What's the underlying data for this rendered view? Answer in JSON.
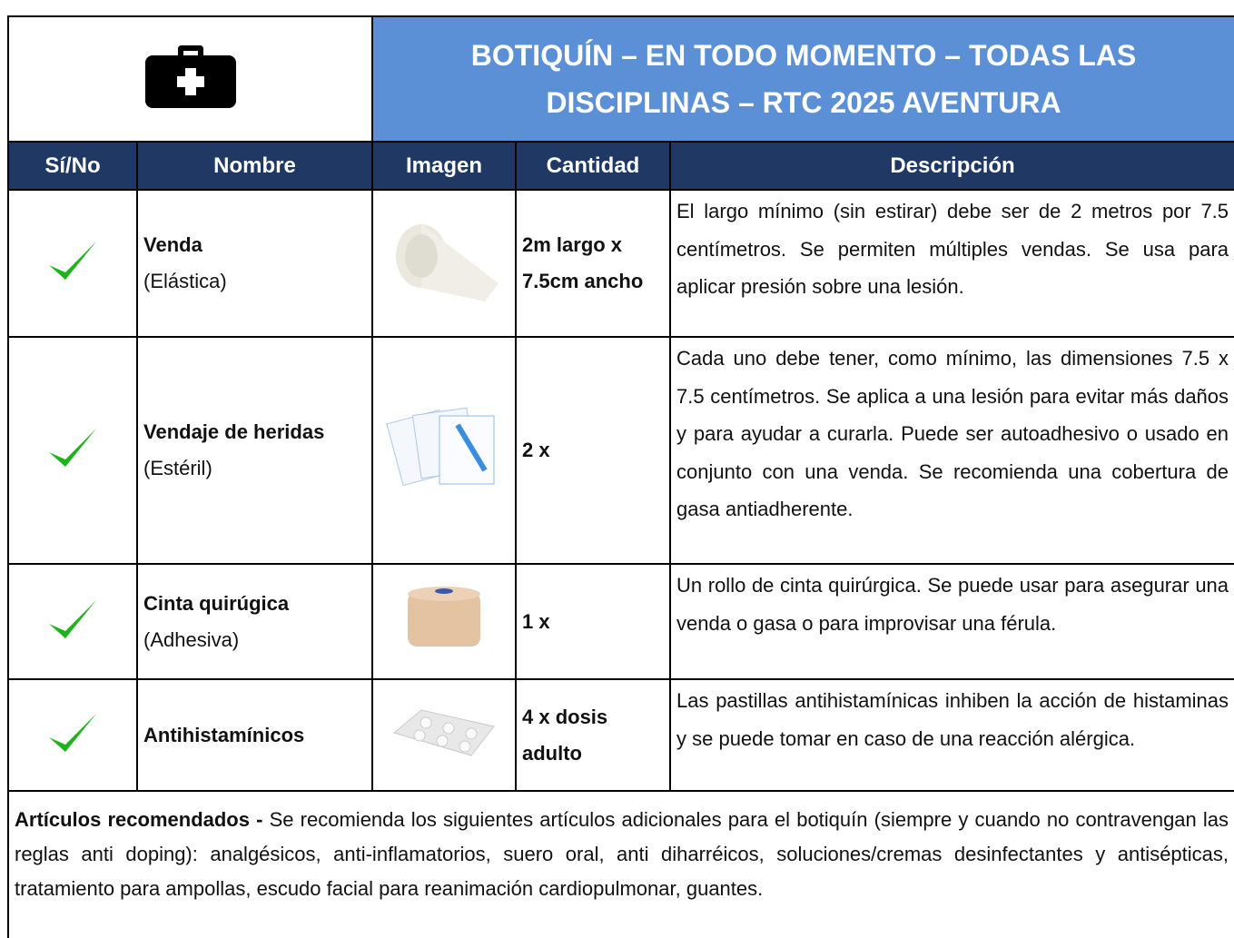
{
  "header": {
    "title": "BOTIQUÍN – EN TODO MOMENTO – TODAS LAS DISCIPLINAS – RTC 2025 AVENTURA"
  },
  "table": {
    "columns": [
      "Sí/No",
      "Nombre",
      "Imagen",
      "Cantidad",
      "Descripción"
    ],
    "rows": [
      {
        "name": "Venda",
        "subtitle": "(Elástica)",
        "quantity": "2m largo x 7.5cm ancho",
        "description": "El largo mínimo (sin estirar) debe ser de 2 metros por 7.5 centímetros. Se permiten múltiples vendas. Se usa para aplicar presión sobre una lesión."
      },
      {
        "name": "Vendaje de heridas",
        "subtitle": "(Estéril)",
        "quantity": "2 x",
        "description": "Cada uno debe tener, como mínimo, las dimensiones 7.5 x 7.5 centímetros. Se aplica a una lesión para evitar más daños y para ayudar a curarla. Puede ser autoadhesivo o usado en conjunto con una venda. Se recomienda una cobertura de gasa antiadherente."
      },
      {
        "name": "Cinta quirúgica",
        "subtitle": "(Adhesiva)",
        "quantity": "1 x",
        "description": "Un rollo de cinta quirúrgica. Se puede usar para asegurar una venda o gasa o para improvisar una férula."
      },
      {
        "name": "Antihistamínicos",
        "subtitle": null,
        "quantity": "4 x dosis adulto",
        "description": "Las pastillas antihistamínicas inhiben la acción de histaminas y se puede tomar en caso de una reacción alérgica."
      }
    ]
  },
  "footer": {
    "label": "Artículos recomendados -",
    "text": "Se recomienda los siguientes artículos adicionales para el botiquín (siempre y cuando no contravengan las reglas anti doping): analgésicos, anti-inflamatorios, suero oral, anti diharréicos, soluciones/cremas desinfectantes y antisépticas, tratamiento para ampollas, escudo facial para reanimación cardiopulmonar, guantes."
  }
}
